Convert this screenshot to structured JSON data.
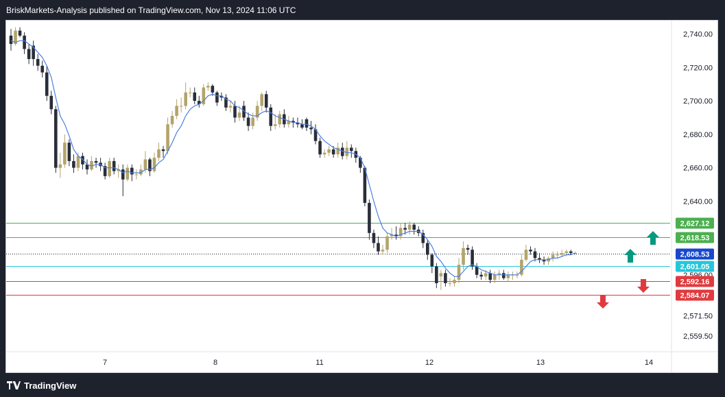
{
  "header": {
    "publisher_line": "BriskMarkets-Analysis published on TradingView.com, Nov 13, 2024 11:06 UTC"
  },
  "footer": {
    "brand": "TradingView"
  },
  "colors": {
    "bull": "#b3a46b",
    "bear": "#2a2e39",
    "ma": "#4a7ee6",
    "green_line": "#4caf50",
    "red_line": "#e03a3e",
    "cyan_line": "#26c6da",
    "arrow_teal": "#089981",
    "arrow_red": "#e03a3e",
    "price_label_blue": "#1848cc"
  },
  "chart_data": {
    "type": "candlestick",
    "title": "",
    "xlabel": "",
    "ylabel": "",
    "ylim": [
      2550,
      2748
    ],
    "x_tick_labels": [
      "7",
      "8",
      "11",
      "12",
      "13",
      "14"
    ],
    "y_tick_labels": [
      "2,740.00",
      "2,720.00",
      "2,700.00",
      "2,680.00",
      "2,660.00",
      "2,640.00",
      "2,596.00",
      "2,571.50",
      "2,559.50"
    ],
    "y_tick_values": [
      2740,
      2720,
      2700,
      2680,
      2660,
      2640,
      2596,
      2571.5,
      2559.5
    ],
    "levels": [
      {
        "label": "2,627.12",
        "value": 2627.12,
        "kind": "green"
      },
      {
        "label": "2,618.53",
        "value": 2618.53,
        "kind": "green"
      },
      {
        "label": "2,608.53",
        "value": 2608.53,
        "kind": "current"
      },
      {
        "label": "2,601.05",
        "value": 2601.05,
        "kind": "cyan"
      },
      {
        "label": "2,592.16",
        "value": 2592.16,
        "kind": "red"
      },
      {
        "label": "2,584.07",
        "value": 2584.07,
        "kind": "red"
      }
    ],
    "series": [
      {
        "open": [
          2739,
          2734,
          2742,
          2739,
          2731,
          2733,
          2725,
          2721,
          2717,
          2703,
          2695,
          2660,
          2662,
          2675,
          2664,
          2660,
          2667,
          2662,
          2659,
          2664,
          2663,
          2661,
          2655,
          2664,
          2658,
          2659,
          2653,
          2660,
          2656,
          2656,
          2659,
          2665,
          2658,
          2666,
          2671,
          2670,
          2686,
          2691,
          2697,
          2697,
          2705,
          2705,
          2700,
          2698,
          2708,
          2709,
          2705,
          2703,
          2702,
          2696,
          2697,
          2690,
          2697,
          2690,
          2685,
          2690,
          2697,
          2704,
          2696,
          2685,
          2686,
          2692,
          2686,
          2688,
          2687,
          2686,
          2689,
          2684,
          2683,
          2676,
          2668,
          2669,
          2671,
          2668,
          2672,
          2667,
          2672,
          2670,
          2666,
          2660,
          2639,
          2621,
          2615,
          2610,
          2611,
          2619,
          2620,
          2619,
          2624,
          2623,
          2626,
          2623,
          2621,
          2615,
          2608,
          2601,
          2595,
          2597,
          2591,
          2591,
          2593,
          2602,
          2612,
          2611,
          2601,
          2596,
          2595,
          2597,
          2593,
          2596,
          2597,
          2594,
          2596,
          2596,
          2596,
          2605,
          2611,
          2610,
          2606,
          2605,
          2604,
          2606,
          2608,
          2608,
          2609,
          2610,
          2609
        ],
        "close": [
          2734,
          2742,
          2739,
          2731,
          2725,
          2725,
          2721,
          2717,
          2703,
          2695,
          2660,
          2662,
          2675,
          2664,
          2660,
          2667,
          2662,
          2659,
          2664,
          2663,
          2661,
          2655,
          2664,
          2658,
          2659,
          2653,
          2660,
          2656,
          2656,
          2659,
          2665,
          2658,
          2666,
          2671,
          2670,
          2686,
          2691,
          2697,
          2697,
          2705,
          2705,
          2700,
          2698,
          2708,
          2709,
          2705,
          2699,
          2702,
          2696,
          2697,
          2690,
          2693,
          2690,
          2685,
          2690,
          2697,
          2704,
          2696,
          2685,
          2686,
          2692,
          2686,
          2688,
          2687,
          2686,
          2684,
          2684,
          2683,
          2676,
          2668,
          2669,
          2671,
          2668,
          2672,
          2667,
          2672,
          2670,
          2666,
          2660,
          2639,
          2621,
          2615,
          2610,
          2611,
          2619,
          2620,
          2619,
          2624,
          2623,
          2626,
          2623,
          2621,
          2615,
          2608,
          2601,
          2591,
          2597,
          2591,
          2591,
          2593,
          2602,
          2612,
          2611,
          2601,
          2596,
          2595,
          2597,
          2593,
          2596,
          2597,
          2594,
          2596,
          2596,
          2596,
          2605,
          2611,
          2610,
          2606,
          2605,
          2604,
          2606,
          2608,
          2608,
          2609,
          2610,
          2609,
          2609
        ],
        "high": [
          2743,
          2744,
          2744,
          2741,
          2734,
          2736,
          2728,
          2724,
          2721,
          2706,
          2697,
          2669,
          2680,
          2677,
          2668,
          2669,
          2669,
          2665,
          2667,
          2666,
          2666,
          2663,
          2666,
          2666,
          2662,
          2662,
          2662,
          2662,
          2659,
          2662,
          2670,
          2666,
          2669,
          2675,
          2673,
          2690,
          2694,
          2701,
          2702,
          2711,
          2708,
          2708,
          2703,
          2710,
          2711,
          2710,
          2706,
          2705,
          2704,
          2700,
          2700,
          2697,
          2700,
          2693,
          2693,
          2700,
          2705,
          2706,
          2698,
          2692,
          2694,
          2695,
          2691,
          2690,
          2690,
          2689,
          2690,
          2688,
          2686,
          2678,
          2671,
          2673,
          2673,
          2675,
          2675,
          2676,
          2674,
          2672,
          2667,
          2661,
          2641,
          2623,
          2619,
          2614,
          2621,
          2624,
          2625,
          2627,
          2627,
          2628,
          2627,
          2625,
          2623,
          2617,
          2609,
          2603,
          2599,
          2599,
          2594,
          2595,
          2606,
          2616,
          2614,
          2613,
          2603,
          2598,
          2599,
          2599,
          2598,
          2599,
          2599,
          2598,
          2598,
          2598,
          2608,
          2614,
          2613,
          2612,
          2609,
          2607,
          2607,
          2610,
          2610,
          2611,
          2611,
          2611,
          2610
        ],
        "low": [
          2730,
          2733,
          2738,
          2728,
          2722,
          2721,
          2718,
          2714,
          2700,
          2692,
          2657,
          2654,
          2660,
          2661,
          2657,
          2658,
          2659,
          2656,
          2658,
          2660,
          2658,
          2653,
          2654,
          2656,
          2654,
          2643,
          2652,
          2652,
          2653,
          2655,
          2657,
          2655,
          2657,
          2664,
          2666,
          2668,
          2684,
          2689,
          2693,
          2695,
          2702,
          2698,
          2696,
          2697,
          2706,
          2703,
          2697,
          2700,
          2694,
          2693,
          2687,
          2688,
          2688,
          2682,
          2683,
          2688,
          2694,
          2693,
          2682,
          2683,
          2684,
          2684,
          2684,
          2684,
          2684,
          2683,
          2682,
          2680,
          2674,
          2666,
          2666,
          2667,
          2666,
          2666,
          2665,
          2665,
          2666,
          2663,
          2657,
          2637,
          2617,
          2612,
          2608,
          2608,
          2609,
          2617,
          2617,
          2617,
          2620,
          2620,
          2620,
          2619,
          2612,
          2605,
          2597,
          2588,
          2587,
          2589,
          2589,
          2589,
          2591,
          2599,
          2608,
          2599,
          2594,
          2593,
          2593,
          2591,
          2591,
          2593,
          2593,
          2592,
          2593,
          2594,
          2595,
          2604,
          2608,
          2604,
          2603,
          2602,
          2602,
          2604,
          2606,
          2607,
          2607,
          2608,
          2608
        ]
      },
      {
        "name_shown": false,
        "type": "line",
        "values": [
          2736,
          2735,
          2736,
          2736,
          2734,
          2732,
          2729,
          2726,
          2721,
          2714,
          2702,
          2691,
          2686,
          2679,
          2671,
          2667,
          2665,
          2662,
          2661,
          2662,
          2662,
          2660,
          2660,
          2660,
          2659,
          2657,
          2658,
          2657,
          2657,
          2657,
          2659,
          2659,
          2660,
          2663,
          2665,
          2670,
          2675,
          2681,
          2685,
          2691,
          2695,
          2697,
          2698,
          2700,
          2703,
          2704,
          2703,
          2703,
          2701,
          2700,
          2697,
          2696,
          2694,
          2692,
          2691,
          2691,
          2693,
          2694,
          2693,
          2691,
          2690,
          2689,
          2688,
          2687,
          2687,
          2686,
          2686,
          2685,
          2683,
          2679,
          2676,
          2674,
          2672,
          2671,
          2670,
          2669,
          2669,
          2668,
          2666,
          2660,
          2650,
          2640,
          2631,
          2624,
          2621,
          2620,
          2619,
          2620,
          2621,
          2622,
          2622,
          2622,
          2620,
          2617,
          2613,
          2607,
          2604,
          2600,
          2597,
          2595,
          2595,
          2598,
          2601,
          2602,
          2601,
          2599,
          2598,
          2597,
          2596,
          2596,
          2596,
          2596,
          2596,
          2596,
          2598,
          2601,
          2604,
          2605,
          2605,
          2605,
          2605,
          2606,
          2606,
          2607,
          2608,
          2608,
          2609
        ]
      }
    ]
  }
}
